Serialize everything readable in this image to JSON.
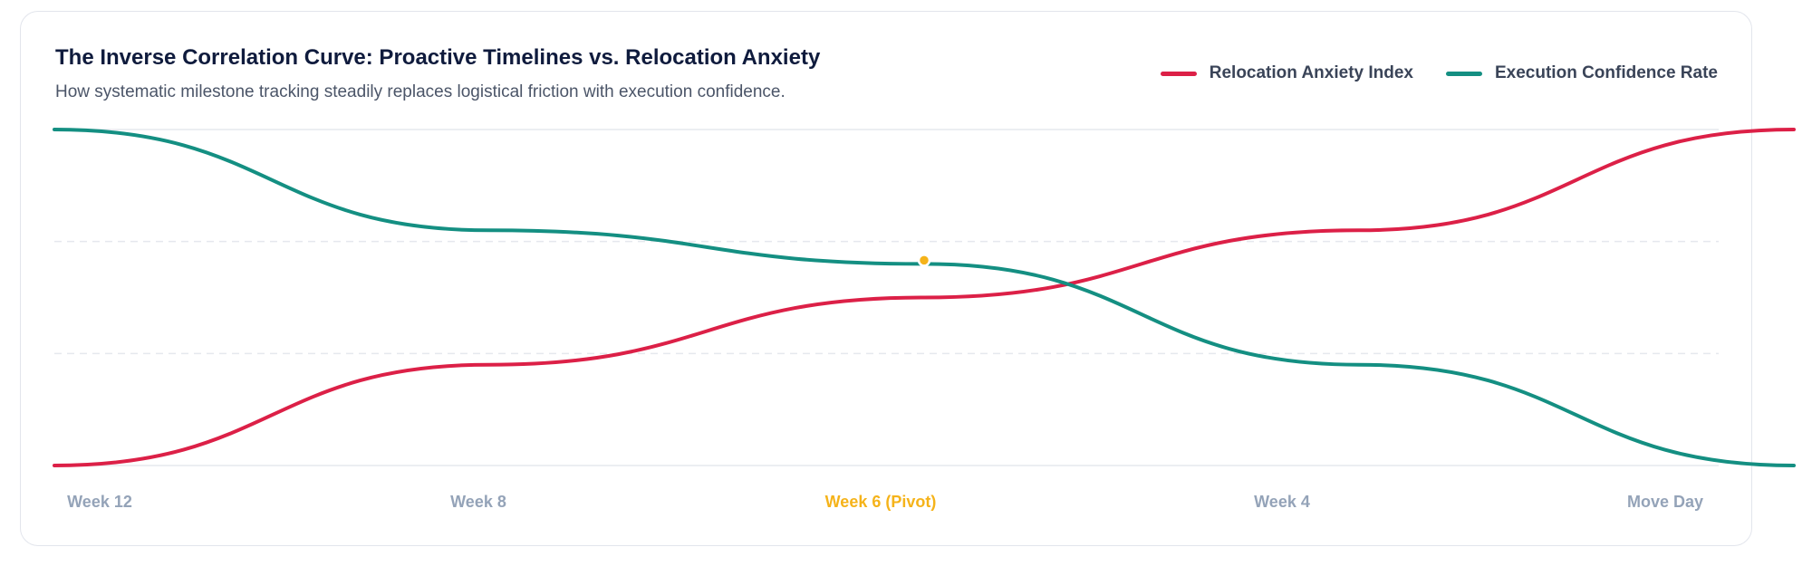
{
  "chart_data": {
    "type": "line",
    "title": "The Inverse Correlation Curve: Proactive Timelines vs. Relocation Anxiety",
    "subtitle": "How systematic milestone tracking steadily replaces logistical friction with execution confidence.",
    "categories": [
      "Week 12",
      "Week 8",
      "Week 6 (Pivot)",
      "Week 4",
      "Move Day"
    ],
    "highlight_category": "Week 6 (Pivot)",
    "ylim": [
      0,
      100
    ],
    "grid": true,
    "legend_position": "top-right",
    "series": [
      {
        "name": "Relocation Anxiety Index",
        "color": "#dc2047",
        "values": [
          0,
          30,
          50,
          70,
          100
        ]
      },
      {
        "name": "Execution Confidence Rate",
        "color": "#148f82",
        "values": [
          100,
          70,
          60,
          30,
          0
        ]
      }
    ],
    "pivot_marker": {
      "category": "Week 6 (Pivot)",
      "value": 60,
      "color": "#f5b31a"
    },
    "colors": {
      "axis_label": "#94a3b8",
      "highlight_label": "#f5b31a",
      "grid": "#e5e8ee"
    }
  }
}
